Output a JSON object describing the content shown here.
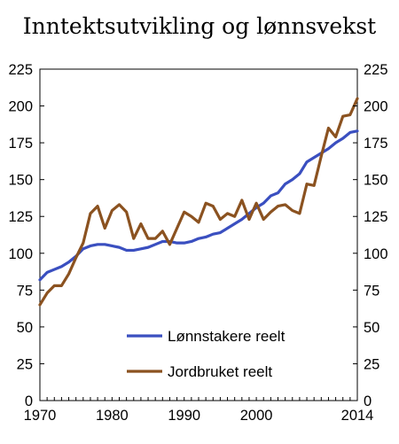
{
  "chart_data": {
    "type": "line",
    "title": "Inntektsutvikling og lønnsvekst",
    "xlabel": "",
    "ylabel": "",
    "xlim": [
      1970,
      2014
    ],
    "ylim": [
      0,
      225
    ],
    "x_ticks": [
      1970,
      1980,
      1990,
      2000,
      2014
    ],
    "y_ticks": [
      0,
      25,
      50,
      75,
      100,
      125,
      150,
      175,
      200,
      225
    ],
    "grid": false,
    "legend_position": "bottom-center",
    "x": [
      1970,
      1971,
      1972,
      1973,
      1974,
      1975,
      1976,
      1977,
      1978,
      1979,
      1980,
      1981,
      1982,
      1983,
      1984,
      1985,
      1986,
      1987,
      1988,
      1989,
      1990,
      1991,
      1992,
      1993,
      1994,
      1995,
      1996,
      1997,
      1998,
      1999,
      2000,
      2001,
      2002,
      2003,
      2004,
      2005,
      2006,
      2007,
      2008,
      2009,
      2010,
      2011,
      2012,
      2013,
      2014
    ],
    "series": [
      {
        "name": "Lønnstakere reelt",
        "color": "#3a4fc0",
        "values": [
          82,
          87,
          89,
          91,
          94,
          98,
          103,
          105,
          106,
          106,
          105,
          104,
          102,
          102,
          103,
          104,
          106,
          108,
          108,
          107,
          107,
          108,
          110,
          111,
          113,
          114,
          117,
          120,
          123,
          127,
          131,
          134,
          139,
          141,
          147,
          150,
          154,
          162,
          165,
          168,
          171,
          175,
          178,
          182,
          183
        ]
      },
      {
        "name": "Jordbruket reelt",
        "color": "#8b5220",
        "values": [
          65,
          73,
          78,
          78,
          86,
          97,
          107,
          127,
          132,
          117,
          129,
          133,
          128,
          110,
          120,
          110,
          110,
          115,
          106,
          117,
          128,
          125,
          121,
          134,
          132,
          123,
          127,
          125,
          136,
          123,
          134,
          123,
          128,
          132,
          133,
          129,
          127,
          147,
          146,
          166,
          185,
          179,
          193,
          194,
          205
        ]
      }
    ]
  }
}
